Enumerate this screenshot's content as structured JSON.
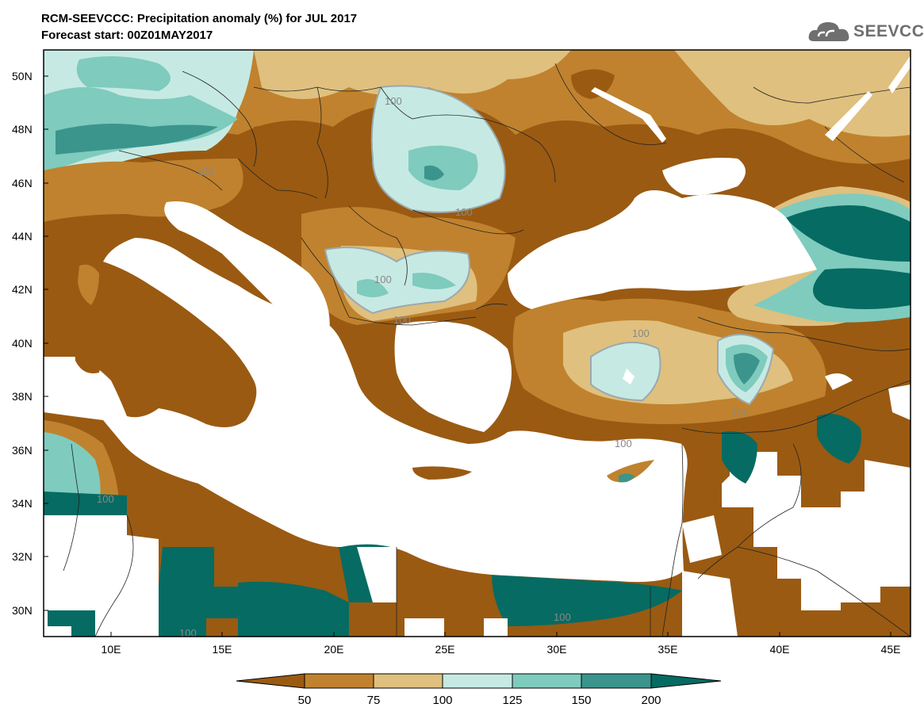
{
  "header": {
    "title": "RCM-SEEVCCC: Precipitation anomaly (%) for JUL 2017",
    "forecast": "Forecast start: 00Z01MAY2017"
  },
  "logo": {
    "text": "SEEVCCC",
    "icon": "cloud-icon"
  },
  "axes": {
    "lat_labels": [
      "50N",
      "48N",
      "46N",
      "44N",
      "42N",
      "40N",
      "38N",
      "36N",
      "34N",
      "32N",
      "30N"
    ],
    "lon_labels": [
      "10E",
      "15E",
      "20E",
      "25E",
      "30E",
      "35E",
      "40E",
      "45E"
    ]
  },
  "colorbar": {
    "labels": [
      "50",
      "75",
      "100",
      "125",
      "150",
      "200"
    ],
    "colors": [
      "#9a5a12",
      "#c0822e",
      "#dfc07e",
      "#c6eae3",
      "#7fcbbe",
      "#3b958c",
      "#066b62"
    ]
  },
  "contour_labels": [
    "100",
    "100",
    "100",
    "100",
    "100",
    "100",
    "100",
    "100",
    "100",
    "100",
    "100"
  ],
  "colors": {
    "very_dry": "#9a5a12",
    "dry": "#c0822e",
    "slightly_dry": "#dfc07e",
    "slightly_wet": "#c6eae3",
    "wet": "#7fcbbe",
    "very_wet": "#3b958c",
    "extreme_wet": "#066b62",
    "sea": "#ffffff"
  }
}
